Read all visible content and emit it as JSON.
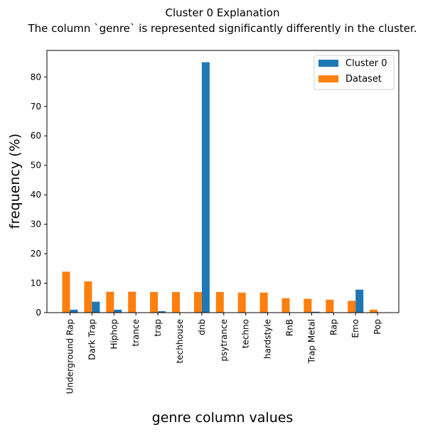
{
  "chart_data": {
    "type": "bar",
    "title": "Cluster 0 Explanation",
    "subtitle": "The column `genre` is represented significantly differently in the cluster.",
    "xlabel": "genre column values",
    "ylabel": "frequency (%)",
    "categories": [
      "Underground Rap",
      "Dark Trap",
      "Hiphop",
      "trance",
      "trap",
      "techhouse",
      "dnb",
      "psytrance",
      "techno",
      "hardstyle",
      "RnB",
      "Trap Metal",
      "Rap",
      "Emo",
      "Pop"
    ],
    "series": [
      {
        "name": "Dataset",
        "color": "#ff7f0e",
        "values": [
          13.9,
          10.6,
          7.1,
          7.1,
          7.0,
          7.0,
          7.0,
          7.0,
          6.8,
          6.8,
          4.9,
          4.7,
          4.4,
          4.0,
          1.0
        ]
      },
      {
        "name": "Cluster 0",
        "color": "#1f77b4",
        "values": [
          1.0,
          3.7,
          1.0,
          0.0,
          0.5,
          0.0,
          85.0,
          0.0,
          0.0,
          0.0,
          0.0,
          0.3,
          0.0,
          7.8,
          0.0
        ]
      }
    ],
    "ylim": [
      0,
      89
    ],
    "yticks": [
      0,
      10,
      20,
      30,
      40,
      50,
      60,
      70,
      80
    ],
    "legend": {
      "position": "top-right",
      "entries": [
        "Cluster 0",
        "Dataset"
      ]
    },
    "grid": false
  }
}
